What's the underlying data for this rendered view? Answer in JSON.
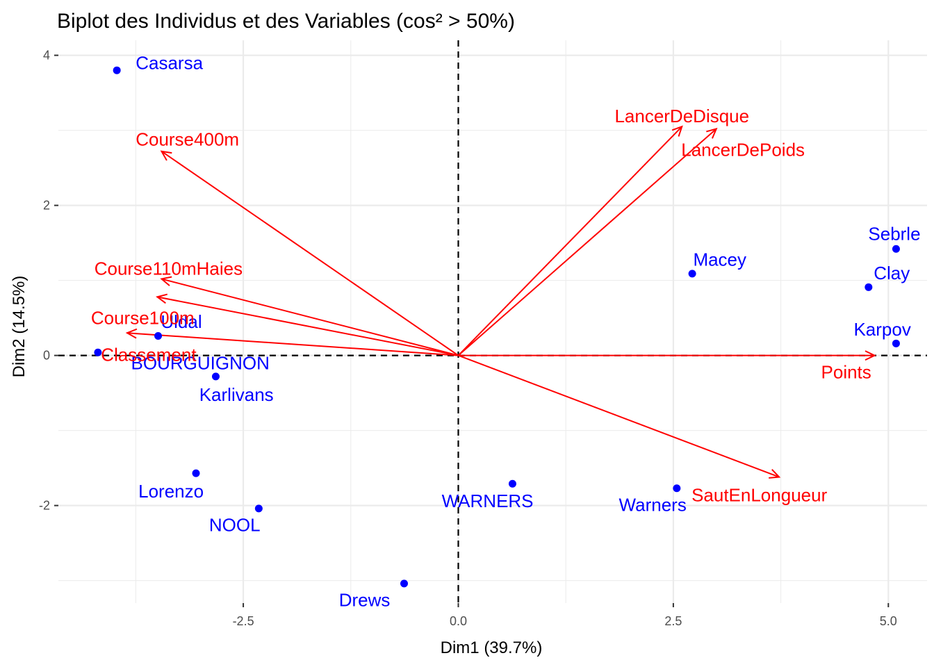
{
  "chart_data": {
    "type": "scatter",
    "title": "Biplot des Individus et des Variables (cos² > 50%)",
    "xlabel": "Dim1 (39.7%)",
    "ylabel": "Dim2 (14.5%)",
    "xlim": [
      -4.65,
      5.45
    ],
    "ylim": [
      -3.3,
      4.2
    ],
    "x_ticks": [
      {
        "value": -2.5,
        "label": "-2.5"
      },
      {
        "value": 0,
        "label": "0.0"
      },
      {
        "value": 2.5,
        "label": "2.5"
      },
      {
        "value": 5,
        "label": "5.0"
      }
    ],
    "y_ticks": [
      {
        "value": -2,
        "label": "-2"
      },
      {
        "value": 0,
        "label": "0"
      },
      {
        "value": 2,
        "label": "2"
      },
      {
        "value": 4,
        "label": "4"
      }
    ],
    "x_minor": [
      -3.75,
      -1.25,
      1.25,
      3.75
    ],
    "y_minor": [
      -3,
      -1,
      1,
      3
    ],
    "grid": true,
    "reference_lines": {
      "x": 0,
      "y": 0,
      "style": "dashed"
    },
    "colors": {
      "individuals": "#0000ff",
      "variables": "#ff0000",
      "reference": "#000000",
      "grid": "#ebebeb"
    },
    "individuals": [
      {
        "name": "Casarsa",
        "x": -3.97,
        "y": 3.8,
        "label_x": -3.36,
        "label_y": 3.9
      },
      {
        "name": "Sebrle",
        "x": 5.09,
        "y": 1.42,
        "label_x": 5.07,
        "label_y": 1.62
      },
      {
        "name": "Clay",
        "x": 4.77,
        "y": 0.91,
        "label_x": 5.04,
        "label_y": 1.1
      },
      {
        "name": "Macey",
        "x": 2.72,
        "y": 1.09,
        "label_x": 3.04,
        "label_y": 1.28
      },
      {
        "name": "Karpov",
        "x": 5.09,
        "y": 0.16,
        "label_x": 4.93,
        "label_y": 0.35
      },
      {
        "name": "Uldal",
        "x": -3.49,
        "y": 0.26,
        "label_x": -3.22,
        "label_y": 0.45
      },
      {
        "name": "BOURGUIGNON",
        "x": -4.19,
        "y": 0.04,
        "label_x": -3.0,
        "label_y": -0.1
      },
      {
        "name": "Karlivans",
        "x": -2.82,
        "y": -0.28,
        "label_x": -2.58,
        "label_y": -0.52
      },
      {
        "name": "Lorenzo",
        "x": -3.05,
        "y": -1.57,
        "label_x": -3.34,
        "label_y": -1.81
      },
      {
        "name": "NOOL",
        "x": -2.32,
        "y": -2.04,
        "label_x": -2.6,
        "label_y": -2.26
      },
      {
        "name": "WARNERS",
        "x": 0.63,
        "y": -1.71,
        "label_x": 0.34,
        "label_y": -1.94
      },
      {
        "name": "Warners",
        "x": 2.54,
        "y": -1.77,
        "label_x": 2.26,
        "label_y": -1.99
      },
      {
        "name": "Drews",
        "x": -0.63,
        "y": -3.04,
        "label_x": -1.09,
        "label_y": -3.26
      }
    ],
    "variables": [
      {
        "name": "LancerDeDisque",
        "x": 2.6,
        "y": 3.05,
        "label_x": 2.6,
        "label_y": 3.19
      },
      {
        "name": "LancerDePoids",
        "x": 3.0,
        "y": 3.02,
        "label_x": 3.31,
        "label_y": 2.74
      },
      {
        "name": "Course400m",
        "x": -3.45,
        "y": 2.72,
        "label_x": -3.15,
        "label_y": 2.88
      },
      {
        "name": "Course110mHaies",
        "x": -3.45,
        "y": 1.02,
        "label_x": -3.37,
        "label_y": 1.16
      },
      {
        "name": "Course100m",
        "x": -3.5,
        "y": 0.78,
        "label_x": -3.67,
        "label_y": 0.5
      },
      {
        "name": "Classement",
        "x": -3.85,
        "y": 0.3,
        "label_x": -3.6,
        "label_y": 0.01
      },
      {
        "name": "Points",
        "x": 4.84,
        "y": 0.0,
        "label_x": 4.51,
        "label_y": -0.22
      },
      {
        "name": "SautEnLongueur",
        "x": 3.73,
        "y": -1.62,
        "label_x": 3.5,
        "label_y": -1.86
      }
    ]
  }
}
